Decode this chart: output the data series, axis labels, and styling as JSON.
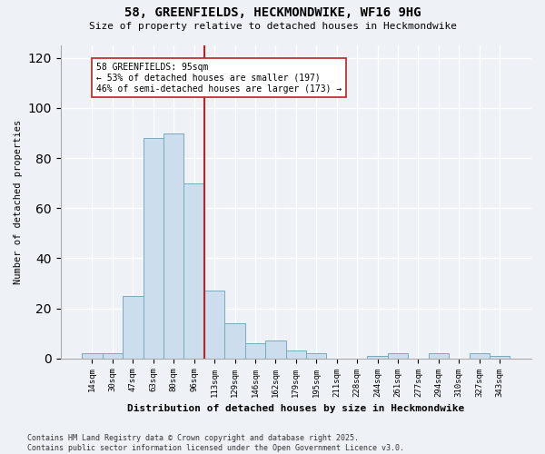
{
  "title1": "58, GREENFIELDS, HECKMONDWIKE, WF16 9HG",
  "title2": "Size of property relative to detached houses in Heckmondwike",
  "xlabel": "Distribution of detached houses by size in Heckmondwike",
  "ylabel": "Number of detached properties",
  "categories": [
    "14sqm",
    "30sqm",
    "47sqm",
    "63sqm",
    "80sqm",
    "96sqm",
    "113sqm",
    "129sqm",
    "146sqm",
    "162sqm",
    "179sqm",
    "195sqm",
    "211sqm",
    "228sqm",
    "244sqm",
    "261sqm",
    "277sqm",
    "294sqm",
    "310sqm",
    "327sqm",
    "343sqm"
  ],
  "values": [
    2,
    2,
    25,
    88,
    90,
    70,
    27,
    14,
    6,
    7,
    3,
    2,
    0,
    0,
    1,
    2,
    0,
    2,
    0,
    2,
    1
  ],
  "bar_color": "#ccdded",
  "bar_edge_color": "#7aaabb",
  "vline_x": 5.5,
  "vline_color": "#bb2222",
  "annotation_text": "58 GREENFIELDS: 95sqm\n← 53% of detached houses are smaller (197)\n46% of semi-detached houses are larger (173) →",
  "annotation_box_color": "white",
  "annotation_box_edge": "#bb2222",
  "ylim": [
    0,
    125
  ],
  "yticks": [
    0,
    20,
    40,
    60,
    80,
    100,
    120
  ],
  "footnote": "Contains HM Land Registry data © Crown copyright and database right 2025.\nContains public sector information licensed under the Open Government Licence v3.0.",
  "bg_color": "#eef2f7",
  "plot_bg_color": "#eef2f7"
}
